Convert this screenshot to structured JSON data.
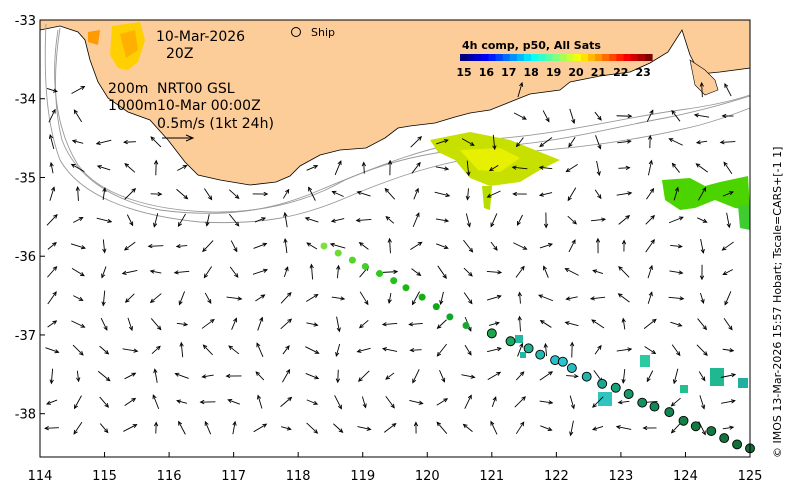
{
  "map": {
    "date_line1": "10-Mar-2026",
    "date_line2": "20Z",
    "ship_label": "Ship",
    "legend_title": "4h comp, p50, All Sats",
    "legend_ticks": [
      "15",
      "16",
      "17",
      "18",
      "19",
      "20",
      "21",
      "22",
      "23"
    ],
    "legend_colors": [
      "#00007f",
      "#0000ff",
      "#007fff",
      "#00ffff",
      "#7fff7f",
      "#ffff00",
      "#ff7f00",
      "#ff0000",
      "#7f0000"
    ],
    "depth_200": "200m",
    "depth_1000": "1000m",
    "model_label": "NRT00 GSL",
    "model_time": "10-Mar 00:00Z",
    "scale_label": "0.5m/s (1kt 24h)",
    "credit": "© IMOS 13-Mar-2026 15:57 Hobart; Tscale=CARS+[-1 1]",
    "x_ticks": [
      "114",
      "115",
      "116",
      "117",
      "118",
      "119",
      "120",
      "121",
      "122",
      "123",
      "124",
      "125"
    ],
    "y_ticks": [
      "-33",
      "-34",
      "-35",
      "-36",
      "-37",
      "-38"
    ],
    "land_color": "#fccc99"
  },
  "chart_data": {
    "type": "map",
    "lon_range": [
      114,
      125
    ],
    "lat_range": [
      -38.55,
      -33
    ],
    "ship_track": [
      {
        "lon": 118.4,
        "lat": -35.87
      },
      {
        "lon": 118.62,
        "lat": -35.96
      },
      {
        "lon": 118.84,
        "lat": -36.05
      },
      {
        "lon": 119.04,
        "lat": -36.13
      },
      {
        "lon": 119.26,
        "lat": -36.22
      },
      {
        "lon": 119.48,
        "lat": -36.31
      },
      {
        "lon": 119.67,
        "lat": -36.4
      },
      {
        "lon": 119.92,
        "lat": -36.52
      },
      {
        "lon": 120.14,
        "lat": -36.64
      },
      {
        "lon": 120.35,
        "lat": -36.77
      },
      {
        "lon": 120.6,
        "lat": -36.88
      },
      {
        "lon": 121.0,
        "lat": -36.98
      },
      {
        "lon": 121.29,
        "lat": -37.08
      },
      {
        "lon": 121.57,
        "lat": -37.17
      },
      {
        "lon": 121.75,
        "lat": -37.25
      },
      {
        "lon": 121.98,
        "lat": -37.32
      },
      {
        "lon": 122.1,
        "lat": -37.34
      },
      {
        "lon": 122.24,
        "lat": -37.42
      },
      {
        "lon": 122.47,
        "lat": -37.53
      },
      {
        "lon": 122.71,
        "lat": -37.62
      },
      {
        "lon": 122.92,
        "lat": -37.67
      },
      {
        "lon": 123.12,
        "lat": -37.75
      },
      {
        "lon": 123.33,
        "lat": -37.86
      },
      {
        "lon": 123.52,
        "lat": -37.91
      },
      {
        "lon": 123.75,
        "lat": -37.98
      },
      {
        "lon": 123.97,
        "lat": -38.09
      },
      {
        "lon": 124.16,
        "lat": -38.16
      },
      {
        "lon": 124.4,
        "lat": -38.22
      },
      {
        "lon": 124.6,
        "lat": -38.31
      },
      {
        "lon": 124.8,
        "lat": -38.39
      },
      {
        "lon": 125.0,
        "lat": -38.44
      }
    ]
  }
}
